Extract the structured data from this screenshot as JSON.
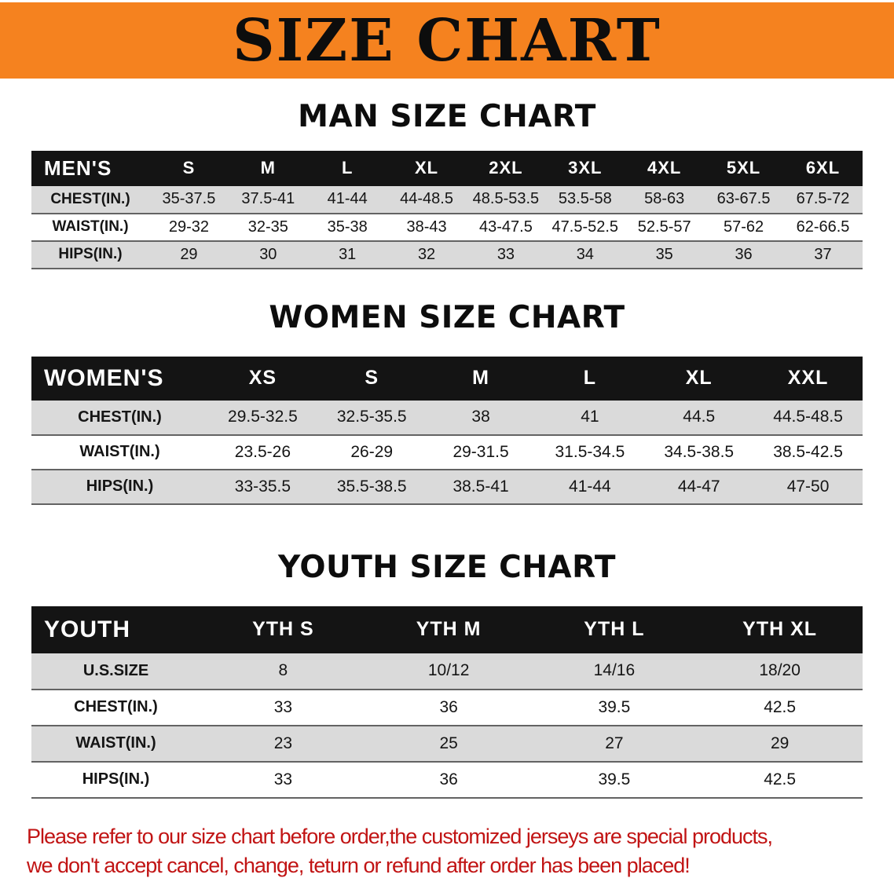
{
  "colors": {
    "banner-bg": "#F5821F",
    "table-header-bg": "#141414",
    "row-stripe": "#DADADA",
    "notice-text": "#C11414"
  },
  "banner": {
    "title": "SIZE CHART"
  },
  "sections": [
    {
      "heading": "MAN SIZE CHART",
      "table": {
        "header": [
          "MEN'S",
          "S",
          "M",
          "L",
          "XL",
          "2XL",
          "3XL",
          "4XL",
          "5XL",
          "6XL"
        ],
        "rows": [
          {
            "label": "CHEST(IN.)",
            "values": [
              "35-37.5",
              "37.5-41",
              "41-44",
              "44-48.5",
              "48.5-53.5",
              "53.5-58",
              "58-63",
              "63-67.5",
              "67.5-72"
            ]
          },
          {
            "label": "WAIST(IN.)",
            "values": [
              "29-32",
              "32-35",
              "35-38",
              "38-43",
              "43-47.5",
              "47.5-52.5",
              "52.5-57",
              "57-62",
              "62-66.5"
            ]
          },
          {
            "label": "HIPS(IN.)",
            "values": [
              "29",
              "30",
              "31",
              "32",
              "33",
              "34",
              "35",
              "36",
              "37"
            ]
          }
        ]
      }
    },
    {
      "heading": "WOMEN SIZE CHART",
      "table": {
        "header": [
          "WOMEN'S",
          "XS",
          "S",
          "M",
          "L",
          "XL",
          "XXL"
        ],
        "rows": [
          {
            "label": "CHEST(IN.)",
            "values": [
              "29.5-32.5",
              "32.5-35.5",
              "38",
              "41",
              "44.5",
              "44.5-48.5"
            ]
          },
          {
            "label": "WAIST(IN.)",
            "values": [
              "23.5-26",
              "26-29",
              "29-31.5",
              "31.5-34.5",
              "34.5-38.5",
              "38.5-42.5"
            ]
          },
          {
            "label": "HIPS(IN.)",
            "values": [
              "33-35.5",
              "35.5-38.5",
              "38.5-41",
              "41-44",
              "44-47",
              "47-50"
            ]
          }
        ]
      }
    },
    {
      "heading": "YOUTH SIZE CHART",
      "table": {
        "header": [
          "YOUTH",
          "YTH S",
          "YTH M",
          "YTH L",
          "YTH XL"
        ],
        "rows": [
          {
            "label": "U.S.SIZE",
            "values": [
              "8",
              "10/12",
              "14/16",
              "18/20"
            ]
          },
          {
            "label": "CHEST(IN.)",
            "values": [
              "33",
              "36",
              "39.5",
              "42.5"
            ]
          },
          {
            "label": "WAIST(IN.)",
            "values": [
              "23",
              "25",
              "27",
              "29"
            ]
          },
          {
            "label": "HIPS(IN.)",
            "values": [
              "33",
              "36",
              "39.5",
              "42.5"
            ]
          }
        ]
      }
    }
  ],
  "footer": {
    "line1": "Please refer to our size chart before order,the customized jerseys are special products,",
    "line2": "we don't accept cancel, change, teturn or refund after order has been placed!"
  }
}
